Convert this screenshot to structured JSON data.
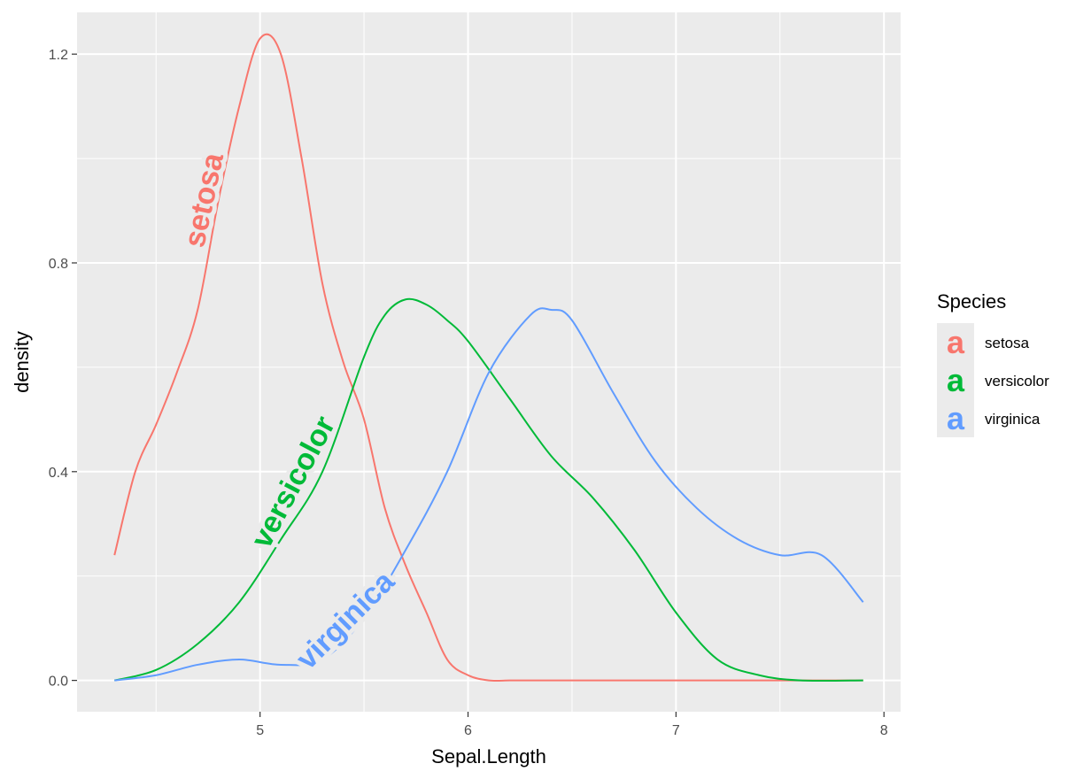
{
  "chart_data": {
    "type": "line",
    "xlabel": "Sepal.Length",
    "ylabel": "density",
    "xlim": [
      4.12,
      8.08
    ],
    "ylim": [
      -0.06,
      1.28
    ],
    "x_ticks": [
      5,
      6,
      7,
      8
    ],
    "y_ticks": [
      0.0,
      0.4,
      0.8,
      1.2
    ],
    "x_tick_labels": [
      "5",
      "6",
      "7",
      "8"
    ],
    "y_tick_labels": [
      "0.0",
      "0.4",
      "0.8",
      "1.2"
    ],
    "grid": true,
    "legend_position": "right",
    "legend_title": "Species",
    "legend_key_glyph": "a",
    "colors": {
      "background": "#ebebeb",
      "grid": "#ffffff"
    },
    "series": [
      {
        "name": "setosa",
        "color": "#f8766d",
        "curve_label": "setosa",
        "x": [
          4.3,
          4.4,
          4.5,
          4.6,
          4.7,
          4.8,
          4.9,
          5.0,
          5.1,
          5.2,
          5.3,
          5.4,
          5.5,
          5.6,
          5.7,
          5.8,
          5.9,
          6.0,
          6.1,
          6.2,
          6.3,
          6.5,
          7.0,
          7.5,
          7.9
        ],
        "y": [
          0.24,
          0.4,
          0.49,
          0.59,
          0.71,
          0.92,
          1.1,
          1.23,
          1.2,
          1.0,
          0.76,
          0.61,
          0.5,
          0.33,
          0.22,
          0.13,
          0.04,
          0.01,
          0.0,
          0.0,
          0.0,
          0.0,
          0.0,
          0.0,
          0.0
        ]
      },
      {
        "name": "versicolor",
        "color": "#00ba38",
        "curve_label": "versicolor",
        "x": [
          4.3,
          4.5,
          4.7,
          4.9,
          5.1,
          5.3,
          5.5,
          5.6,
          5.7,
          5.8,
          5.9,
          6.0,
          6.2,
          6.4,
          6.6,
          6.8,
          7.0,
          7.2,
          7.4,
          7.6,
          7.9
        ],
        "y": [
          0.0,
          0.02,
          0.07,
          0.15,
          0.27,
          0.4,
          0.62,
          0.7,
          0.73,
          0.72,
          0.69,
          0.65,
          0.54,
          0.43,
          0.35,
          0.25,
          0.13,
          0.04,
          0.01,
          0.0,
          0.0
        ]
      },
      {
        "name": "virginica",
        "color": "#619cff",
        "curve_label": "virginica",
        "x": [
          4.3,
          4.5,
          4.7,
          4.9,
          5.1,
          5.3,
          5.5,
          5.7,
          5.9,
          6.1,
          6.3,
          6.4,
          6.5,
          6.7,
          6.9,
          7.1,
          7.3,
          7.5,
          7.7,
          7.9
        ],
        "y": [
          0.0,
          0.01,
          0.03,
          0.04,
          0.03,
          0.04,
          0.12,
          0.25,
          0.4,
          0.59,
          0.7,
          0.71,
          0.69,
          0.55,
          0.42,
          0.33,
          0.27,
          0.24,
          0.24,
          0.15
        ]
      }
    ]
  }
}
